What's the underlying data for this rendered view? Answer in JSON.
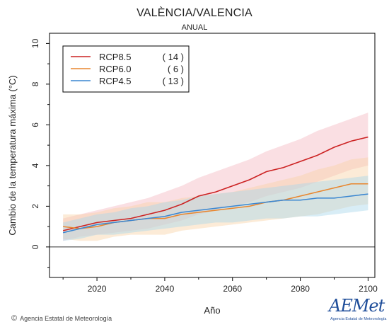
{
  "header": {
    "title": "VALÈNCIA/VALENCIA",
    "subtitle": "ANUAL"
  },
  "footer": {
    "copyright_symbol": "©",
    "credit": "Agencia Estatal de Meteorología",
    "logo_text": "AEMet",
    "logo_subtext": "Agencia Estatal de Meteorología"
  },
  "colors": {
    "rcp85": "#cc2222",
    "rcp60": "#e8862e",
    "rcp45": "#3a86d1",
    "rcp85_band": "#f4b9c1",
    "rcp60_band": "#f8d3a6",
    "rcp45_band": "#a9d8ea",
    "zero_line": "#333333"
  },
  "chart_data": {
    "type": "line",
    "title": "VALÈNCIA/VALENCIA",
    "subtitle": "ANUAL",
    "xlabel": "Año",
    "ylabel": "Cambio de la temperatura máxima (°C)",
    "xlim": [
      2006,
      2102
    ],
    "ylim": [
      -1.5,
      10.5
    ],
    "xticks": [
      2020,
      2040,
      2060,
      2080,
      2100
    ],
    "yticks": [
      0,
      2,
      4,
      6,
      8,
      10
    ],
    "grid": false,
    "legend_position": "top-left",
    "series": [
      {
        "name": "RCP8.5",
        "count_label": "( 14 )",
        "color": "#cc2222",
        "x": [
          2010,
          2015,
          2020,
          2025,
          2030,
          2035,
          2040,
          2045,
          2050,
          2055,
          2060,
          2065,
          2070,
          2075,
          2080,
          2085,
          2090,
          2095,
          2100
        ],
        "y": [
          0.8,
          1.0,
          1.2,
          1.3,
          1.4,
          1.6,
          1.8,
          2.1,
          2.5,
          2.7,
          3.0,
          3.3,
          3.7,
          3.9,
          4.2,
          4.5,
          4.9,
          5.2,
          5.4
        ],
        "lower": [
          0.3,
          0.5,
          0.6,
          0.7,
          0.8,
          0.9,
          1.1,
          1.3,
          1.6,
          1.8,
          2.0,
          2.2,
          2.5,
          2.7,
          2.9,
          3.2,
          3.5,
          3.8,
          4.0
        ],
        "upper": [
          1.4,
          1.6,
          1.8,
          2.0,
          2.2,
          2.4,
          2.7,
          3.0,
          3.4,
          3.7,
          4.0,
          4.3,
          4.7,
          5.0,
          5.3,
          5.7,
          6.0,
          6.3,
          6.6
        ]
      },
      {
        "name": "RCP6.0",
        "count_label": "( 6 )",
        "color": "#e8862e",
        "x": [
          2010,
          2015,
          2020,
          2025,
          2030,
          2035,
          2040,
          2045,
          2050,
          2055,
          2060,
          2065,
          2070,
          2075,
          2080,
          2085,
          2090,
          2095,
          2100
        ],
        "y": [
          1.0,
          0.9,
          1.0,
          1.2,
          1.3,
          1.4,
          1.4,
          1.6,
          1.7,
          1.8,
          1.9,
          2.0,
          2.2,
          2.3,
          2.5,
          2.7,
          2.9,
          3.1,
          3.1
        ],
        "lower": [
          0.4,
          0.3,
          0.3,
          0.5,
          0.6,
          0.6,
          0.6,
          0.8,
          0.9,
          1.0,
          1.1,
          1.2,
          1.3,
          1.4,
          1.5,
          1.6,
          1.8,
          2.0,
          2.1
        ],
        "upper": [
          1.6,
          1.6,
          1.7,
          1.9,
          2.0,
          2.2,
          2.2,
          2.4,
          2.5,
          2.6,
          2.7,
          2.9,
          3.1,
          3.3,
          3.5,
          3.8,
          4.0,
          4.3,
          4.4
        ]
      },
      {
        "name": "RCP4.5",
        "count_label": "( 13 )",
        "color": "#3a86d1",
        "x": [
          2010,
          2015,
          2020,
          2025,
          2030,
          2035,
          2040,
          2045,
          2050,
          2055,
          2060,
          2065,
          2070,
          2075,
          2080,
          2085,
          2090,
          2095,
          2100
        ],
        "y": [
          0.7,
          0.9,
          1.1,
          1.2,
          1.3,
          1.4,
          1.5,
          1.7,
          1.8,
          1.9,
          2.0,
          2.1,
          2.2,
          2.3,
          2.3,
          2.4,
          2.4,
          2.5,
          2.6
        ],
        "lower": [
          0.3,
          0.4,
          0.6,
          0.6,
          0.7,
          0.8,
          0.9,
          1.0,
          1.1,
          1.2,
          1.2,
          1.3,
          1.4,
          1.4,
          1.5,
          1.5,
          1.6,
          1.7,
          1.8
        ],
        "upper": [
          1.2,
          1.4,
          1.6,
          1.7,
          1.9,
          2.0,
          2.2,
          2.3,
          2.5,
          2.6,
          2.7,
          2.8,
          2.9,
          3.0,
          3.1,
          3.2,
          3.3,
          3.4,
          3.5
        ]
      }
    ]
  }
}
